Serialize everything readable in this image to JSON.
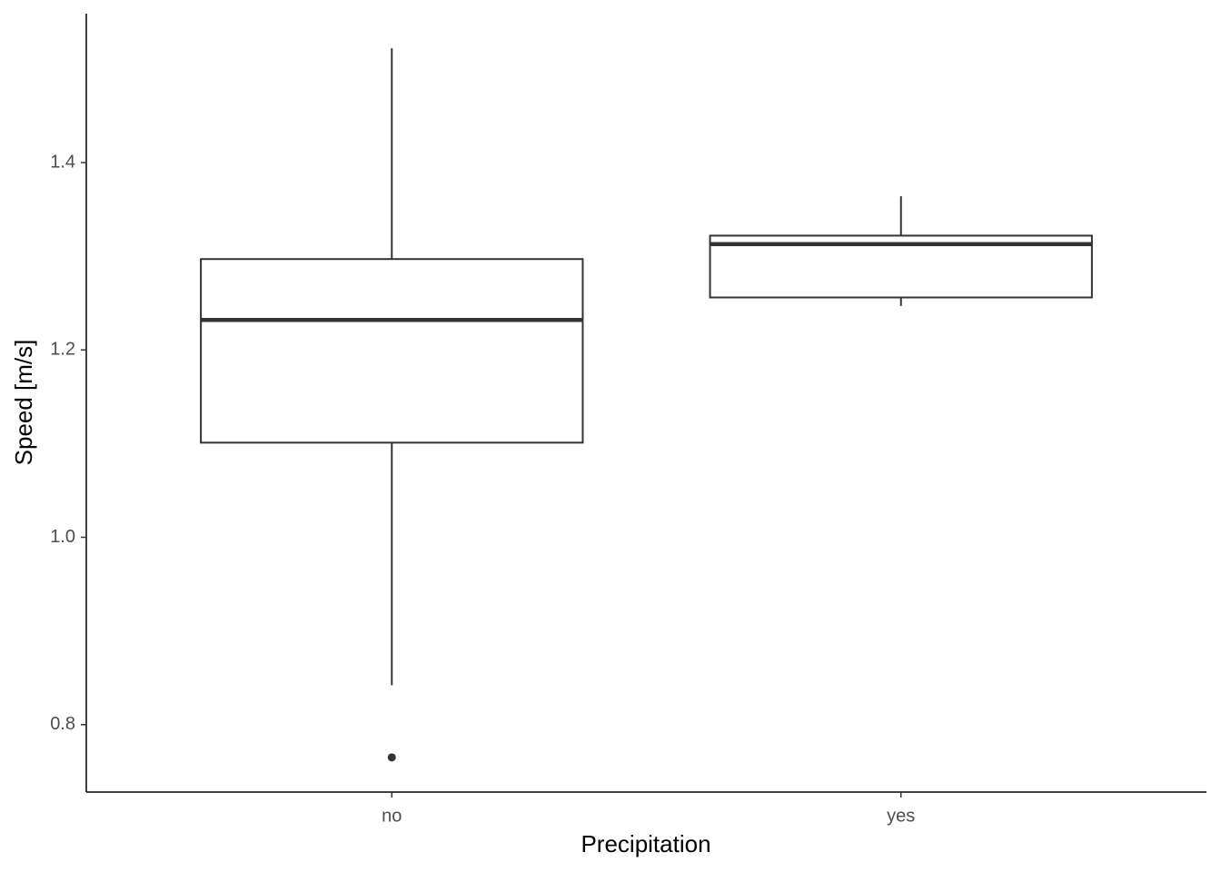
{
  "chart_data": {
    "type": "box",
    "x_label": "Precipitation",
    "y_label": "Speed [m/s]",
    "categories": [
      "no",
      "yes"
    ],
    "boxes": [
      {
        "whislo": 0.842,
        "q1": 1.101,
        "med": 1.232,
        "q3": 1.297,
        "whishi": 1.522,
        "fliers": [
          0.765
        ]
      },
      {
        "whislo": 1.247,
        "q1": 1.256,
        "med": 1.313,
        "q3": 1.322,
        "whishi": 1.364,
        "fliers": []
      }
    ],
    "color": "#333333",
    "fill": "#ffffff",
    "ylim": [
      0.728,
      1.559
    ],
    "yticks": [
      0.8,
      1.0,
      1.2,
      1.4
    ]
  }
}
